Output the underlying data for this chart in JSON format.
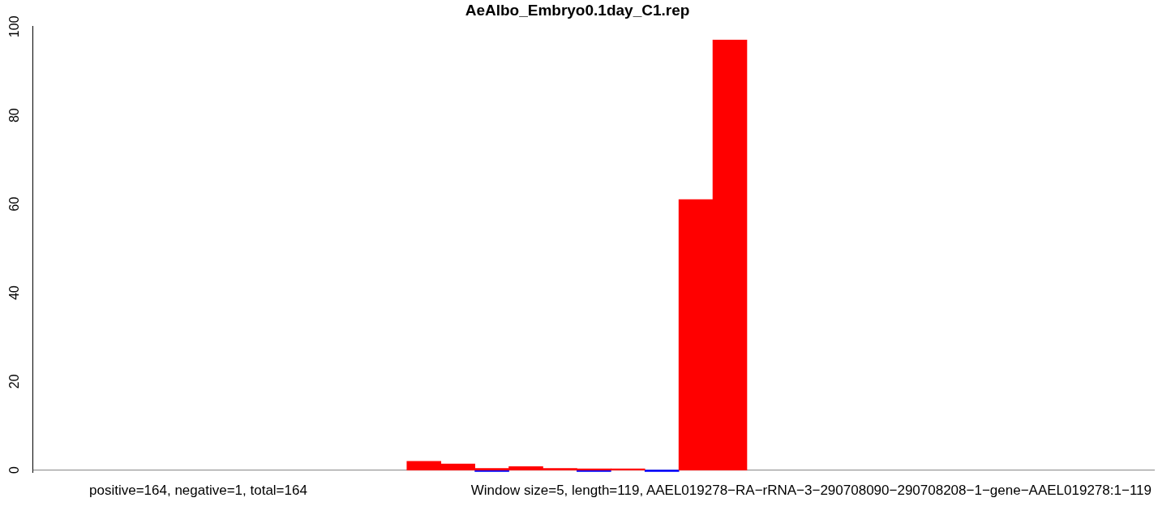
{
  "chart_data": {
    "type": "bar",
    "title": "AeAlbo_Embryo0.1day_C1.rep",
    "categories": [
      null,
      null,
      null,
      null,
      null,
      null,
      null,
      null,
      null,
      null,
      null,
      null,
      null,
      null,
      null,
      null,
      null,
      null,
      null,
      null,
      null,
      null,
      null,
      null,
      null,
      null,
      null,
      null,
      null,
      null,
      null,
      null,
      null
    ],
    "series": [
      {
        "color": "#ff0000",
        "values": [
          null,
          null,
          null,
          null,
          null,
          null,
          null,
          null,
          null,
          null,
          null,
          2,
          1.4,
          0.4,
          0.8,
          0.4,
          0.3,
          0.3,
          null,
          61,
          97,
          null,
          null,
          null,
          null,
          null,
          null,
          null,
          null,
          null,
          null,
          null,
          null
        ]
      },
      {
        "color": "#0000ff",
        "values": [
          null,
          null,
          null,
          null,
          null,
          null,
          null,
          null,
          null,
          null,
          null,
          null,
          null,
          -0.3,
          null,
          null,
          -0.3,
          null,
          -0.3,
          null,
          null,
          null,
          null,
          null,
          null,
          null,
          null,
          null,
          null,
          null,
          null,
          null,
          null
        ]
      }
    ],
    "stacked": true,
    "ylim": [
      -0.5,
      100
    ],
    "yticks": [
      0,
      20,
      40,
      60,
      80,
      100
    ],
    "tick_labels": "y",
    "grid": false,
    "legend": false,
    "ref_lines": [
      {
        "axis": "y",
        "value": 0,
        "color": "#808080"
      }
    ],
    "annotations": [
      "positive=164, negative=1, total=164",
      "Window size=5, length=119, AAEL019278−RA−rRNA−3−290708090−290708208−1−gene−AAEL019278:1−119"
    ]
  }
}
